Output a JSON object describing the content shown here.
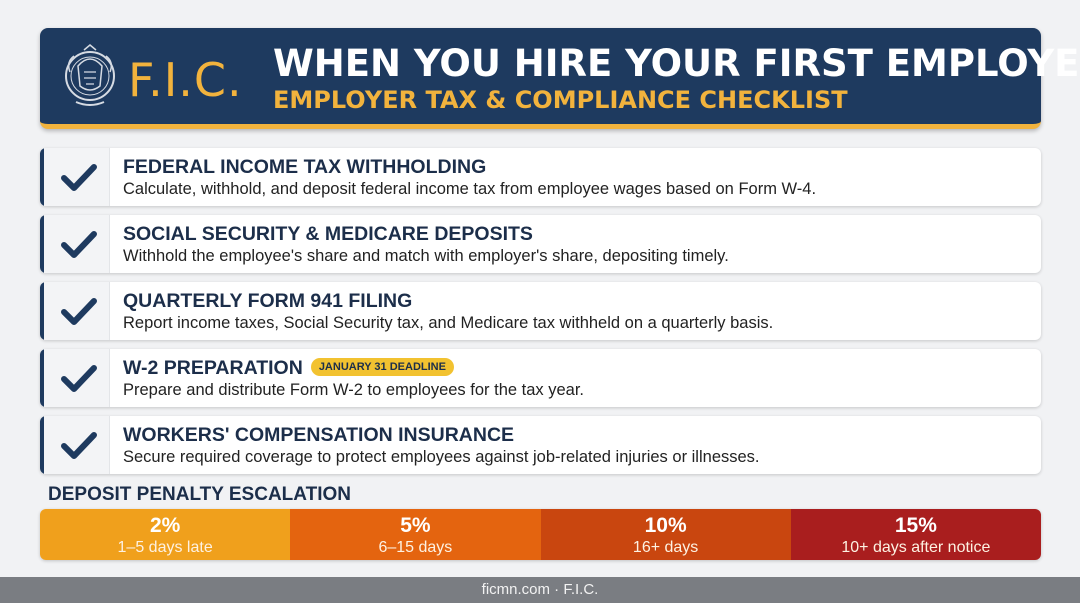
{
  "header": {
    "brand": "F.I.C.",
    "title": "WHEN YOU HIRE YOUR FIRST EMPLOYEE",
    "subtitle": "EMPLOYER TAX & COMPLIANCE CHECKLIST",
    "seal_icon": "state-seal-icon"
  },
  "checklist": [
    {
      "title": "FEDERAL INCOME TAX WITHHOLDING",
      "description": "Calculate, withhold, and deposit federal income tax from employee wages based on Form W-4."
    },
    {
      "title": "SOCIAL SECURITY & MEDICARE DEPOSITS",
      "description": "Withhold the employee's share and match with employer's share, depositing timely."
    },
    {
      "title": "QUARTERLY FORM 941 FILING",
      "description": "Report income taxes, Social Security tax, and Medicare tax withheld on a quarterly basis."
    },
    {
      "title": "W-2 PREPARATION",
      "badge": "JANUARY 31 DEADLINE",
      "description": "Prepare and distribute Form W-2 to employees for the tax year."
    },
    {
      "title": "WORKERS' COMPENSATION INSURANCE",
      "description": "Secure required coverage to protect employees against job-related injuries or illnesses."
    }
  ],
  "penalty": {
    "label": "DEPOSIT PENALTY ESCALATION",
    "tiers": [
      {
        "rate": "2%",
        "days": "1–5 days late",
        "color": "#f0a01c"
      },
      {
        "rate": "5%",
        "days": "6–15 days",
        "color": "#e4640f"
      },
      {
        "rate": "10%",
        "days": "16+ days",
        "color": "#c9460f"
      },
      {
        "rate": "15%",
        "days": "10+ days after notice",
        "color": "#a91e1e"
      }
    ]
  },
  "footer": {
    "text": "ficmn.com · F.I.C."
  },
  "colors": {
    "navy": "#1e3a5f",
    "gold": "#f2b33d",
    "background": "#f1f2f4"
  }
}
